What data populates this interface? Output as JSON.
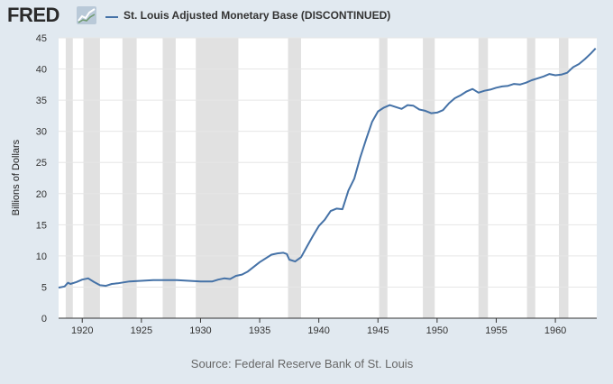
{
  "header": {
    "logo_text": "FRED",
    "logo_badge_icon": "chart-trend-icon",
    "series_label": "St. Louis Adjusted Monetary Base (DISCONTINUED)"
  },
  "source_text": "Source: Federal Reserve Bank of St. Louis",
  "colors": {
    "series": "#4572a7",
    "recession": "#e1e1e1",
    "grid": "#e6e6e6",
    "axis": "#333333",
    "background": "#e1e9f0",
    "plot_background": "#ffffff"
  },
  "chart_data": {
    "type": "line",
    "title": "St. Louis Adjusted Monetary Base (DISCONTINUED)",
    "xlabel": "",
    "ylabel": "Billions of Dollars",
    "xlim": [
      1918.0,
      1963.5
    ],
    "ylim": [
      0,
      45
    ],
    "xticks": [
      1920,
      1925,
      1930,
      1935,
      1940,
      1945,
      1950,
      1955,
      1960
    ],
    "yticks": [
      0,
      5,
      10,
      15,
      20,
      25,
      30,
      35,
      40,
      45
    ],
    "grid": true,
    "legend": "top-left",
    "recessions": [
      [
        1918.6,
        1919.2
      ],
      [
        1920.1,
        1921.5
      ],
      [
        1923.4,
        1924.6
      ],
      [
        1926.8,
        1927.9
      ],
      [
        1929.6,
        1933.2
      ],
      [
        1937.4,
        1938.5
      ],
      [
        1945.1,
        1945.8
      ],
      [
        1948.8,
        1949.8
      ],
      [
        1953.5,
        1954.3
      ],
      [
        1957.6,
        1958.3
      ],
      [
        1960.3,
        1961.1
      ]
    ],
    "series": [
      {
        "name": "St. Louis Adjusted Monetary Base (DISCONTINUED)",
        "x": [
          1918.0,
          1918.5,
          1918.8,
          1919.0,
          1919.5,
          1920.0,
          1920.5,
          1921.0,
          1921.5,
          1922.0,
          1922.5,
          1923.0,
          1924.0,
          1925.0,
          1926.0,
          1927.0,
          1928.0,
          1929.0,
          1930.0,
          1931.0,
          1931.5,
          1932.0,
          1932.5,
          1933.0,
          1933.5,
          1934.0,
          1935.0,
          1936.0,
          1936.5,
          1937.0,
          1937.3,
          1937.5,
          1938.0,
          1938.5,
          1939.0,
          1939.5,
          1940.0,
          1940.5,
          1941.0,
          1941.5,
          1942.0,
          1942.5,
          1943.0,
          1943.5,
          1944.0,
          1944.5,
          1945.0,
          1945.5,
          1946.0,
          1946.5,
          1947.0,
          1947.5,
          1948.0,
          1948.5,
          1949.0,
          1949.5,
          1950.0,
          1950.5,
          1951.0,
          1951.5,
          1952.0,
          1952.5,
          1953.0,
          1953.5,
          1954.0,
          1954.5,
          1955.0,
          1955.5,
          1956.0,
          1956.5,
          1957.0,
          1957.5,
          1958.0,
          1958.5,
          1959.0,
          1959.5,
          1960.0,
          1960.5,
          1961.0,
          1961.5,
          1962.0,
          1962.5,
          1963.0,
          1963.4
        ],
        "values": [
          4.9,
          5.1,
          5.7,
          5.5,
          5.8,
          6.2,
          6.4,
          5.8,
          5.3,
          5.2,
          5.5,
          5.6,
          5.9,
          6.0,
          6.1,
          6.1,
          6.1,
          6.0,
          5.9,
          5.9,
          6.2,
          6.4,
          6.3,
          6.8,
          7.0,
          7.5,
          9.0,
          10.2,
          10.4,
          10.5,
          10.3,
          9.4,
          9.1,
          9.8,
          11.5,
          13.2,
          14.8,
          15.8,
          17.2,
          17.6,
          17.5,
          20.5,
          22.4,
          25.8,
          28.7,
          31.5,
          33.2,
          33.8,
          34.2,
          33.9,
          33.6,
          34.2,
          34.1,
          33.5,
          33.3,
          32.9,
          33.0,
          33.4,
          34.5,
          35.3,
          35.8,
          36.4,
          36.8,
          36.2,
          36.5,
          36.7,
          37.0,
          37.2,
          37.3,
          37.6,
          37.5,
          37.8,
          38.2,
          38.5,
          38.8,
          39.2,
          39.0,
          39.1,
          39.4,
          40.3,
          40.8,
          41.6,
          42.5,
          43.3
        ]
      }
    ]
  }
}
